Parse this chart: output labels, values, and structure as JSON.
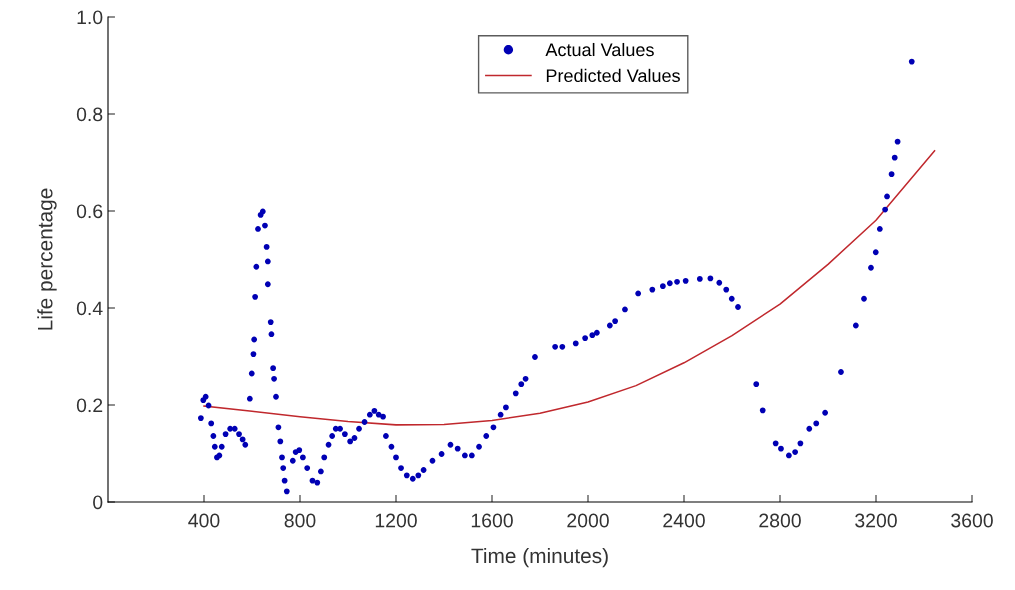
{
  "chart_data": {
    "type": "scatter",
    "xlabel": "Time (minutes)",
    "ylabel": "Life percentage",
    "xlim": [
      0,
      3600
    ],
    "xticks": [
      400,
      800,
      1200,
      1600,
      2000,
      2400,
      2800,
      3200,
      3600
    ],
    "ylim": [
      0,
      1.0
    ],
    "yticks": [
      0,
      {
        "value": 0.2,
        "label": "0.2"
      },
      {
        "value": 0.4,
        "label": "0.4"
      },
      {
        "value": 0.6,
        "label": "0.6"
      },
      {
        "value": 0.8,
        "label": "0.8"
      },
      {
        "value": 1.0,
        "label": "1.0"
      }
    ],
    "legend": "top",
    "grid": false,
    "series": [
      {
        "name": "Actual Values",
        "marker": "circle",
        "color": "#0000b4",
        "x": [
          387,
          397,
          407,
          419,
          430,
          439,
          445,
          454,
          464,
          474,
          490,
          509,
          528,
          546,
          561,
          572,
          591,
          599,
          606,
          609,
          613,
          618,
          625,
          636,
          645,
          654,
          661,
          666,
          666,
          678,
          681,
          688,
          692,
          700,
          710,
          718,
          725,
          730,
          736,
          745,
          770,
          782,
          797,
          812,
          830,
          852,
          872,
          887,
          901,
          919,
          934,
          949,
          967,
          987,
          1009,
          1027,
          1046,
          1069,
          1091,
          1110,
          1128,
          1146,
          1158,
          1181,
          1200,
          1221,
          1245,
          1270,
          1293,
          1315,
          1352,
          1390,
          1427,
          1457,
          1487,
          1516,
          1546,
          1576,
          1606,
          1636,
          1658,
          1699,
          1722,
          1740,
          1779,
          1863,
          1893,
          1949,
          1988,
          2018,
          2037,
          2091,
          2113,
          2154,
          2209,
          2268,
          2312,
          2341,
          2371,
          2407,
          2466,
          2510,
          2547,
          2576,
          2599,
          2625,
          2701,
          2728,
          2782,
          2804,
          2837,
          2863,
          2885,
          2922,
          2951,
          2988,
          3054,
          3116,
          3150,
          3179,
          3199,
          3216,
          3238,
          3246,
          3265,
          3278,
          3290,
          3349
        ],
        "values": [
          0.173,
          0.21,
          0.217,
          0.199,
          0.162,
          0.136,
          0.114,
          0.092,
          0.096,
          0.114,
          0.14,
          0.151,
          0.151,
          0.14,
          0.129,
          0.118,
          0.213,
          0.265,
          0.305,
          0.335,
          0.423,
          0.485,
          0.563,
          0.592,
          0.599,
          0.57,
          0.526,
          0.496,
          0.449,
          0.371,
          0.346,
          0.276,
          0.254,
          0.217,
          0.154,
          0.125,
          0.092,
          0.07,
          0.044,
          0.022,
          0.085,
          0.103,
          0.107,
          0.092,
          0.07,
          0.044,
          0.04,
          0.063,
          0.092,
          0.118,
          0.136,
          0.151,
          0.151,
          0.14,
          0.125,
          0.132,
          0.151,
          0.165,
          0.18,
          0.188,
          0.18,
          0.176,
          0.136,
          0.114,
          0.092,
          0.07,
          0.055,
          0.048,
          0.055,
          0.066,
          0.085,
          0.099,
          0.118,
          0.11,
          0.096,
          0.096,
          0.114,
          0.136,
          0.154,
          0.18,
          0.195,
          0.224,
          0.243,
          0.254,
          0.299,
          0.32,
          0.32,
          0.327,
          0.338,
          0.344,
          0.349,
          0.364,
          0.373,
          0.397,
          0.43,
          0.438,
          0.445,
          0.451,
          0.454,
          0.456,
          0.46,
          0.461,
          0.452,
          0.438,
          0.419,
          0.402,
          0.243,
          0.189,
          0.121,
          0.11,
          0.096,
          0.103,
          0.121,
          0.151,
          0.162,
          0.184,
          0.268,
          0.364,
          0.419,
          0.483,
          0.515,
          0.563,
          0.603,
          0.63,
          0.676,
          0.71,
          0.743,
          0.908
        ]
      },
      {
        "name": "Predicted Values",
        "type": "line",
        "marker": "none",
        "line_style": "solid",
        "color": "#c0282d",
        "x": [
          400,
          600,
          800,
          1000,
          1200,
          1400,
          1600,
          1800,
          2000,
          2200,
          2400,
          2600,
          2800,
          3000,
          3200,
          3444
        ],
        "values": [
          0.198,
          0.187,
          0.176,
          0.166,
          0.159,
          0.16,
          0.168,
          0.183,
          0.206,
          0.24,
          0.287,
          0.343,
          0.408,
          0.49,
          0.581,
          0.724
        ]
      }
    ]
  }
}
